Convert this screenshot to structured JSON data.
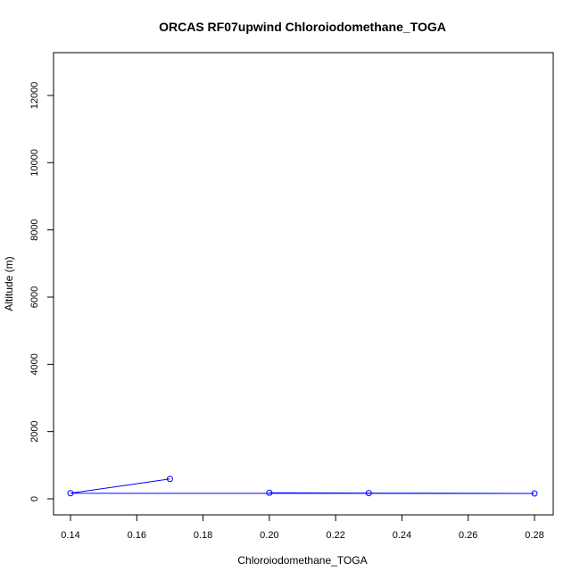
{
  "chart_data": {
    "type": "line",
    "title": "ORCAS RF07upwind Chloroiodomethane_TOGA",
    "xlabel": "Chloroiodomethane_TOGA",
    "ylabel": "Altitude (m)",
    "xlim": [
      0.14,
      0.28
    ],
    "ylim": [
      0,
      12000
    ],
    "x_ticks": [
      "0.14",
      "0.16",
      "0.18",
      "0.20",
      "0.22",
      "0.24",
      "0.26",
      "0.28"
    ],
    "y_ticks": [
      "0",
      "2000",
      "4000",
      "6000",
      "8000",
      "10000",
      "12000"
    ],
    "grid": false,
    "series": [
      {
        "color": "#0000ff",
        "points": [
          {
            "x": 0.17,
            "y": 590
          },
          {
            "x": 0.14,
            "y": 165
          },
          {
            "x": 0.28,
            "y": 160
          },
          {
            "x": 0.23,
            "y": 170
          },
          {
            "x": 0.2,
            "y": 180
          }
        ]
      }
    ]
  }
}
